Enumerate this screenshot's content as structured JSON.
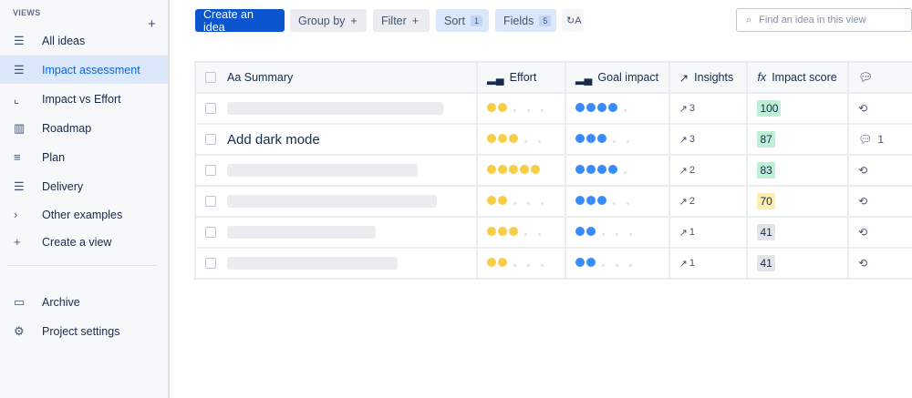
{
  "sidebar": {
    "section_label": "VIEWS",
    "add_label": "+",
    "items": [
      {
        "label": "All ideas",
        "icon": "list-icon",
        "glyph": "☰"
      },
      {
        "label": "Impact assessment",
        "icon": "list-icon",
        "glyph": "☰",
        "active": true
      },
      {
        "label": "Impact vs Effort",
        "icon": "scatter-chart-icon",
        "glyph": "⌞"
      },
      {
        "label": "Roadmap",
        "icon": "board-icon",
        "glyph": "▥"
      },
      {
        "label": "Plan",
        "icon": "timeline-icon",
        "glyph": "≡"
      },
      {
        "label": "Delivery",
        "icon": "list-icon",
        "glyph": "☰"
      },
      {
        "label": "Other examples",
        "icon": "chevron-right-icon",
        "glyph": "›"
      },
      {
        "label": "Create a view",
        "icon": "plus-icon",
        "glyph": "+"
      }
    ],
    "bottom": [
      {
        "label": "Archive",
        "icon": "archive-icon",
        "glyph": "▭"
      },
      {
        "label": "Project settings",
        "icon": "gear-icon",
        "glyph": "⚙"
      }
    ]
  },
  "toolbar": {
    "create": "Create an idea",
    "group_by": "Group by",
    "filter": "Filter",
    "plus": "+",
    "sort": "Sort",
    "sort_count": "1",
    "fields": "Fields",
    "fields_count": "5",
    "search_placeholder": "Find an idea in this view"
  },
  "table": {
    "headers": {
      "summary": "Aa  Summary",
      "effort": "Effort",
      "goal": "Goal impact",
      "insights": "Insights",
      "impact": "Impact score"
    },
    "rows": [
      {
        "summary": "",
        "effort": 2,
        "goal": 4,
        "insights": "3",
        "score": "100",
        "score_color": "#bdf0d4",
        "comments": ""
      },
      {
        "summary": "Add dark mode",
        "effort": 3,
        "goal": 3,
        "insights": "3",
        "score": "87",
        "score_color": "#bdf0d4",
        "comments": "1"
      },
      {
        "summary": "",
        "effort": 5,
        "goal": 4,
        "insights": "2",
        "score": "83",
        "score_color": "#bdf0d4",
        "comments": ""
      },
      {
        "summary": "",
        "effort": 2,
        "goal": 3,
        "insights": "2",
        "score": "70",
        "score_color": "#fbeeb0",
        "comments": ""
      },
      {
        "summary": "",
        "effort": 3,
        "goal": 2,
        "insights": "1",
        "score": "41",
        "score_color": "#e2e4e8",
        "comments": ""
      },
      {
        "summary": "",
        "effort": 2,
        "goal": 2,
        "insights": "1",
        "score": "41",
        "score_color": "#e2e4e8",
        "comments": ""
      }
    ],
    "max_rating": 5,
    "colors": {
      "effort": "#f5cd47",
      "goal": "#388bff"
    }
  }
}
